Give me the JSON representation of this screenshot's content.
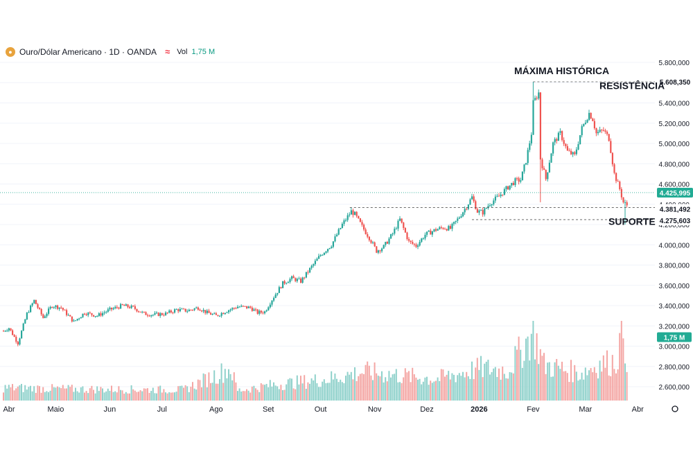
{
  "legend": {
    "symbol": "Ouro/Dólar Americano · 1D · OANDA",
    "volume_label": "Vol",
    "volume_value": "1,75 M",
    "icon": "gold-coin-icon"
  },
  "colors": {
    "up": "#26a69a",
    "down": "#ef5350",
    "up_vol": "#8fd1cb",
    "down_vol": "#f4a6a4",
    "last": "#22ab94",
    "grid": "#f0f3fa",
    "axis_text": "#131722"
  },
  "chart_data": {
    "type": "candlestick",
    "title": "Ouro/Dólar Americano · 1D · OANDA",
    "ylim": [
      2500,
      5900
    ],
    "y_ticks": [
      "5.800,000",
      "5.600,000",
      "5.400,000",
      "5.200,000",
      "5.000,000",
      "4.800,000",
      "4.600,000",
      "4.400,000",
      "4.200,000",
      "4.000,000",
      "3.800,000",
      "3.600,000",
      "3.400,000",
      "3.200,000",
      "3.000,000",
      "2.800,000",
      "2.600,000"
    ],
    "y_tick_values": [
      5800,
      5600,
      5400,
      5200,
      5000,
      4800,
      4600,
      4400,
      4200,
      4000,
      3800,
      3600,
      3400,
      3200,
      3000,
      2800,
      2600
    ],
    "x_ticks": [
      "Abr",
      "Maio",
      "Jun",
      "Jul",
      "Ago",
      "Set",
      "Out",
      "Nov",
      "Dez",
      "2026",
      "Fev",
      "Mar",
      "Abr"
    ],
    "x_tick_positions": [
      0,
      29,
      59,
      88,
      118,
      147,
      176,
      206,
      235,
      264,
      294,
      323,
      352
    ],
    "bars": 342,
    "anchors": [
      [
        0,
        3150
      ],
      [
        3,
        3180
      ],
      [
        8,
        3030
      ],
      [
        13,
        3320
      ],
      [
        17,
        3450
      ],
      [
        22,
        3280
      ],
      [
        27,
        3400
      ],
      [
        32,
        3380
      ],
      [
        39,
        3240
      ],
      [
        45,
        3330
      ],
      [
        52,
        3300
      ],
      [
        59,
        3360
      ],
      [
        66,
        3400
      ],
      [
        72,
        3380
      ],
      [
        78,
        3320
      ],
      [
        83,
        3310
      ],
      [
        90,
        3320
      ],
      [
        96,
        3360
      ],
      [
        102,
        3350
      ],
      [
        108,
        3380
      ],
      [
        113,
        3330
      ],
      [
        118,
        3300
      ],
      [
        124,
        3350
      ],
      [
        130,
        3390
      ],
      [
        137,
        3380
      ],
      [
        141,
        3330
      ],
      [
        145,
        3340
      ],
      [
        149,
        3460
      ],
      [
        155,
        3620
      ],
      [
        160,
        3670
      ],
      [
        165,
        3640
      ],
      [
        170,
        3760
      ],
      [
        176,
        3900
      ],
      [
        182,
        4000
      ],
      [
        188,
        4200
      ],
      [
        193,
        4330
      ],
      [
        195,
        4300
      ],
      [
        199,
        4180
      ],
      [
        203,
        4070
      ],
      [
        207,
        3940
      ],
      [
        211,
        3980
      ],
      [
        216,
        4110
      ],
      [
        220,
        4250
      ],
      [
        225,
        4030
      ],
      [
        229,
        3990
      ],
      [
        234,
        4100
      ],
      [
        240,
        4150
      ],
      [
        244,
        4170
      ],
      [
        248,
        4160
      ],
      [
        252,
        4250
      ],
      [
        257,
        4380
      ],
      [
        260,
        4470
      ],
      [
        263,
        4330
      ],
      [
        266,
        4320
      ],
      [
        270,
        4410
      ],
      [
        275,
        4480
      ],
      [
        280,
        4570
      ],
      [
        284,
        4630
      ],
      [
        287,
        4640
      ],
      [
        290,
        4830
      ],
      [
        293,
        5100
      ],
      [
        294,
        5400
      ],
      [
        297,
        5500
      ],
      [
        298,
        4850
      ],
      [
        301,
        4650
      ],
      [
        305,
        5000
      ],
      [
        309,
        5100
      ],
      [
        313,
        4920
      ],
      [
        317,
        4880
      ],
      [
        321,
        5150
      ],
      [
        325,
        5300
      ],
      [
        327,
        5240
      ],
      [
        329,
        5100
      ],
      [
        333,
        5130
      ],
      [
        336,
        5050
      ],
      [
        339,
        4700
      ],
      [
        342,
        4550
      ],
      [
        344,
        4420
      ],
      [
        346,
        4390
      ]
    ],
    "vol_anchors": [
      [
        0,
        0.18
      ],
      [
        40,
        0.16
      ],
      [
        100,
        0.15
      ],
      [
        126,
        0.45
      ],
      [
        130,
        0.14
      ],
      [
        150,
        0.22
      ],
      [
        180,
        0.3
      ],
      [
        200,
        0.4
      ],
      [
        240,
        0.3
      ],
      [
        265,
        0.45
      ],
      [
        280,
        0.42
      ],
      [
        294,
        0.95
      ],
      [
        300,
        0.5
      ],
      [
        320,
        0.38
      ],
      [
        330,
        0.5
      ],
      [
        340,
        0.55
      ],
      [
        344,
        1.0
      ],
      [
        346,
        0.6
      ]
    ],
    "last_price": "4.425,995",
    "last_value": 4425.995,
    "levels": [
      {
        "label": "5.608,350",
        "value": 5608.35,
        "type": "máxima"
      },
      {
        "label": "4.381,492",
        "value": 4381.492,
        "type": "resistência"
      },
      {
        "label": "4.275,603",
        "value": 4275.603,
        "type": "suporte"
      }
    ],
    "volume_tag": "1,75 M",
    "annotations": [
      {
        "text": "MÁXIMA HISTÓRICA",
        "value": 5608.35
      },
      {
        "text": "RESISTÊNCIA",
        "value": 5330
      },
      {
        "text": "SUPORTE",
        "value": 4150
      }
    ]
  }
}
